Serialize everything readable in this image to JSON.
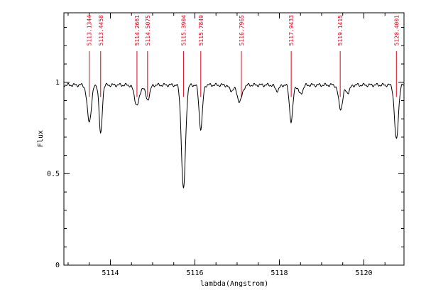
{
  "chart_data": {
    "type": "line",
    "title": "",
    "xlabel": "lambda(Angstrom)",
    "ylabel": "Flux",
    "xlim": [
      5112.9,
      5120.95
    ],
    "ylim": [
      0,
      1.38
    ],
    "grid": false,
    "x_ticks": [
      {
        "value": 5114,
        "label": "5114"
      },
      {
        "value": 5116,
        "label": "5116"
      },
      {
        "value": 5118,
        "label": "5118"
      },
      {
        "value": 5120,
        "label": "5120"
      }
    ],
    "y_ticks": [
      {
        "value": 0,
        "label": "0"
      },
      {
        "value": 0.5,
        "label": "0.5"
      },
      {
        "value": 1,
        "label": "1"
      }
    ],
    "continuum": 0.985,
    "absorption_lines": [
      {
        "wavelength": 5113.5,
        "depth": 0.2,
        "width": 0.05
      },
      {
        "wavelength": 5113.77,
        "depth": 0.27,
        "width": 0.035
      },
      {
        "wavelength": 5114.63,
        "depth": 0.11,
        "width": 0.06
      },
      {
        "wavelength": 5114.88,
        "depth": 0.08,
        "width": 0.05
      },
      {
        "wavelength": 5115.73,
        "depth": 0.57,
        "width": 0.048
      },
      {
        "wavelength": 5116.14,
        "depth": 0.24,
        "width": 0.04
      },
      {
        "wavelength": 5116.86,
        "depth": 0.03,
        "width": 0.05
      },
      {
        "wavelength": 5117.06,
        "depth": 0.09,
        "width": 0.06
      },
      {
        "wavelength": 5117.95,
        "depth": 0.03,
        "width": 0.05
      },
      {
        "wavelength": 5118.28,
        "depth": 0.2,
        "width": 0.04
      },
      {
        "wavelength": 5118.5,
        "depth": 0.05,
        "width": 0.05
      },
      {
        "wavelength": 5119.45,
        "depth": 0.13,
        "width": 0.05
      },
      {
        "wavelength": 5119.62,
        "depth": 0.04,
        "width": 0.05
      },
      {
        "wavelength": 5120.77,
        "depth": 0.3,
        "width": 0.045
      }
    ],
    "annotations": [
      {
        "x": 5113.5,
        "label": "5113.1344"
      },
      {
        "x": 5113.77,
        "label": "5113.4458"
      },
      {
        "x": 5114.63,
        "label": "5114.2661"
      },
      {
        "x": 5114.88,
        "label": "5114.5075"
      },
      {
        "x": 5115.73,
        "label": "5115.3904"
      },
      {
        "x": 5116.14,
        "label": "5115.7849"
      },
      {
        "x": 5117.1,
        "label": "5116.7965"
      },
      {
        "x": 5118.28,
        "label": "5117.9433"
      },
      {
        "x": 5119.44,
        "label": "5119.1415"
      },
      {
        "x": 5120.77,
        "label": "5120.4001"
      }
    ],
    "colors": {
      "spectrum": "#000000",
      "annotation": "#e0001b",
      "axis": "#000000"
    }
  }
}
